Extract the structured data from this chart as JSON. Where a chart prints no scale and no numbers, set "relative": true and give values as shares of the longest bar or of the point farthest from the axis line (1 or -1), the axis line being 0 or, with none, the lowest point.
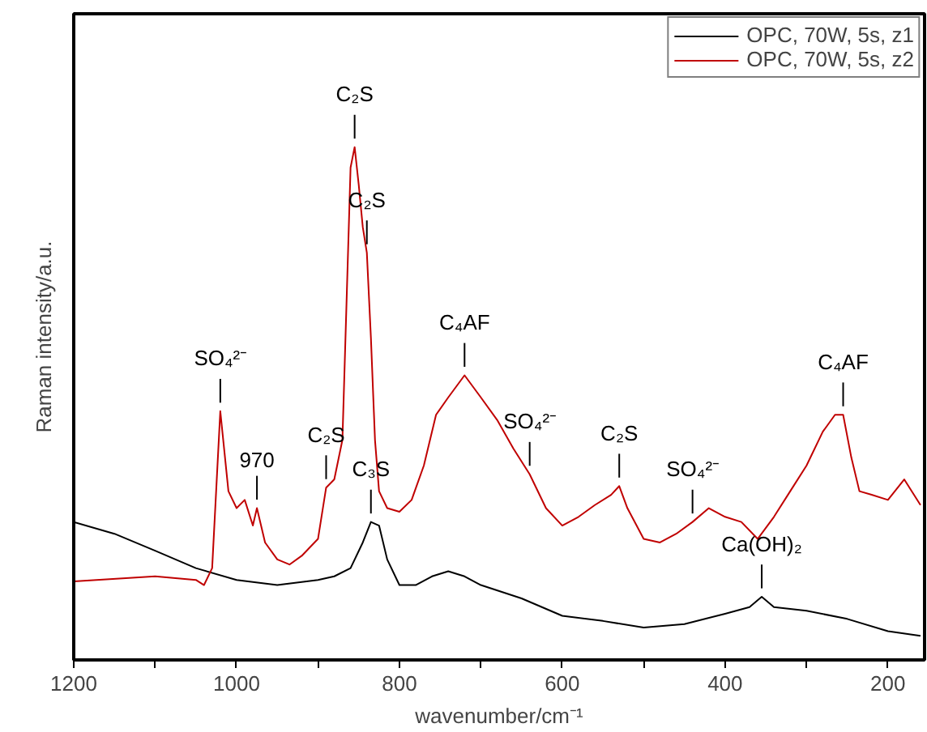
{
  "chart_data": {
    "type": "line",
    "relative": true,
    "xlabel": "wavenumber/cm⁻¹",
    "ylabel": "Raman intensity/a.u.",
    "xlim": [
      1200,
      155
    ],
    "xticks": [
      1200,
      {
        "value": 1100,
        "label": null
      },
      1000,
      {
        "value": 900,
        "label": null
      },
      800,
      {
        "value": 700,
        "label": null
      },
      600,
      {
        "value": 500,
        "label": null
      },
      400,
      {
        "value": 300,
        "label": null
      },
      200
    ],
    "grid": false,
    "legend": "top right",
    "line_style": "solid",
    "marker": "none",
    "series": [
      {
        "name": "OPC, 70W, 5s, z1",
        "color": "#000000",
        "x": [
          1200,
          1150,
          1100,
          1050,
          1000,
          950,
          900,
          880,
          860,
          845,
          835,
          825,
          815,
          800,
          780,
          760,
          740,
          720,
          700,
          650,
          600,
          550,
          500,
          450,
          400,
          370,
          355,
          340,
          300,
          250,
          200,
          160
        ],
        "values": [
          0.269,
          0.246,
          0.213,
          0.179,
          0.156,
          0.146,
          0.156,
          0.163,
          0.179,
          0.229,
          0.269,
          0.262,
          0.196,
          0.146,
          0.146,
          0.163,
          0.173,
          0.163,
          0.146,
          0.12,
          0.086,
          0.076,
          0.063,
          0.07,
          0.09,
          0.103,
          0.123,
          0.103,
          0.096,
          0.08,
          0.056,
          0.047
        ]
      },
      {
        "name": "OPC, 70W, 5s, z2",
        "color": "#c00000",
        "x": [
          1200,
          1100,
          1050,
          1040,
          1030,
          1020,
          1010,
          1000,
          990,
          980,
          975,
          965,
          950,
          935,
          920,
          900,
          890,
          880,
          870,
          865,
          860,
          855,
          850,
          845,
          840,
          835,
          830,
          825,
          815,
          800,
          785,
          770,
          755,
          740,
          720,
          700,
          680,
          660,
          640,
          620,
          600,
          580,
          560,
          540,
          530,
          520,
          500,
          480,
          460,
          440,
          420,
          400,
          380,
          360,
          340,
          320,
          300,
          280,
          265,
          255,
          245,
          235,
          220,
          200,
          180,
          160
        ],
        "values": [
          0.153,
          0.163,
          0.156,
          0.146,
          0.179,
          0.485,
          0.329,
          0.296,
          0.312,
          0.262,
          0.296,
          0.229,
          0.196,
          0.186,
          0.203,
          0.236,
          0.336,
          0.352,
          0.429,
          0.694,
          0.96,
          1.0,
          0.927,
          0.844,
          0.794,
          0.628,
          0.429,
          0.329,
          0.296,
          0.289,
          0.312,
          0.379,
          0.478,
          0.512,
          0.555,
          0.512,
          0.468,
          0.412,
          0.362,
          0.296,
          0.262,
          0.279,
          0.302,
          0.322,
          0.339,
          0.296,
          0.236,
          0.229,
          0.246,
          0.269,
          0.296,
          0.279,
          0.269,
          0.236,
          0.279,
          0.329,
          0.379,
          0.445,
          0.478,
          0.478,
          0.395,
          0.329,
          0.322,
          0.312,
          0.352,
          0.302
        ]
      }
    ],
    "annotations": [
      {
        "text": "C₂S",
        "x": 855,
        "y": 1.0
      },
      {
        "text": "C₂S",
        "x": 840,
        "y": 0.794
      },
      {
        "text": "SO₄²⁻",
        "x": 1020,
        "y": 0.485
      },
      {
        "text": "970",
        "x": 975,
        "y": 0.296
      },
      {
        "text": "C₂S",
        "x": 890,
        "y": 0.336
      },
      {
        "text": "C₃S",
        "x": 835,
        "y": 0.269
      },
      {
        "text": "C₄AF",
        "x": 720,
        "y": 0.555
      },
      {
        "text": "SO₄²⁻",
        "x": 640,
        "y": 0.362
      },
      {
        "text": "C₂S",
        "x": 530,
        "y": 0.339
      },
      {
        "text": "SO₄²⁻",
        "x": 440,
        "y": 0.269
      },
      {
        "text": "Ca(OH)₂",
        "x": 355,
        "y": 0.123
      },
      {
        "text": "C₄AF",
        "x": 255,
        "y": 0.478
      }
    ]
  }
}
